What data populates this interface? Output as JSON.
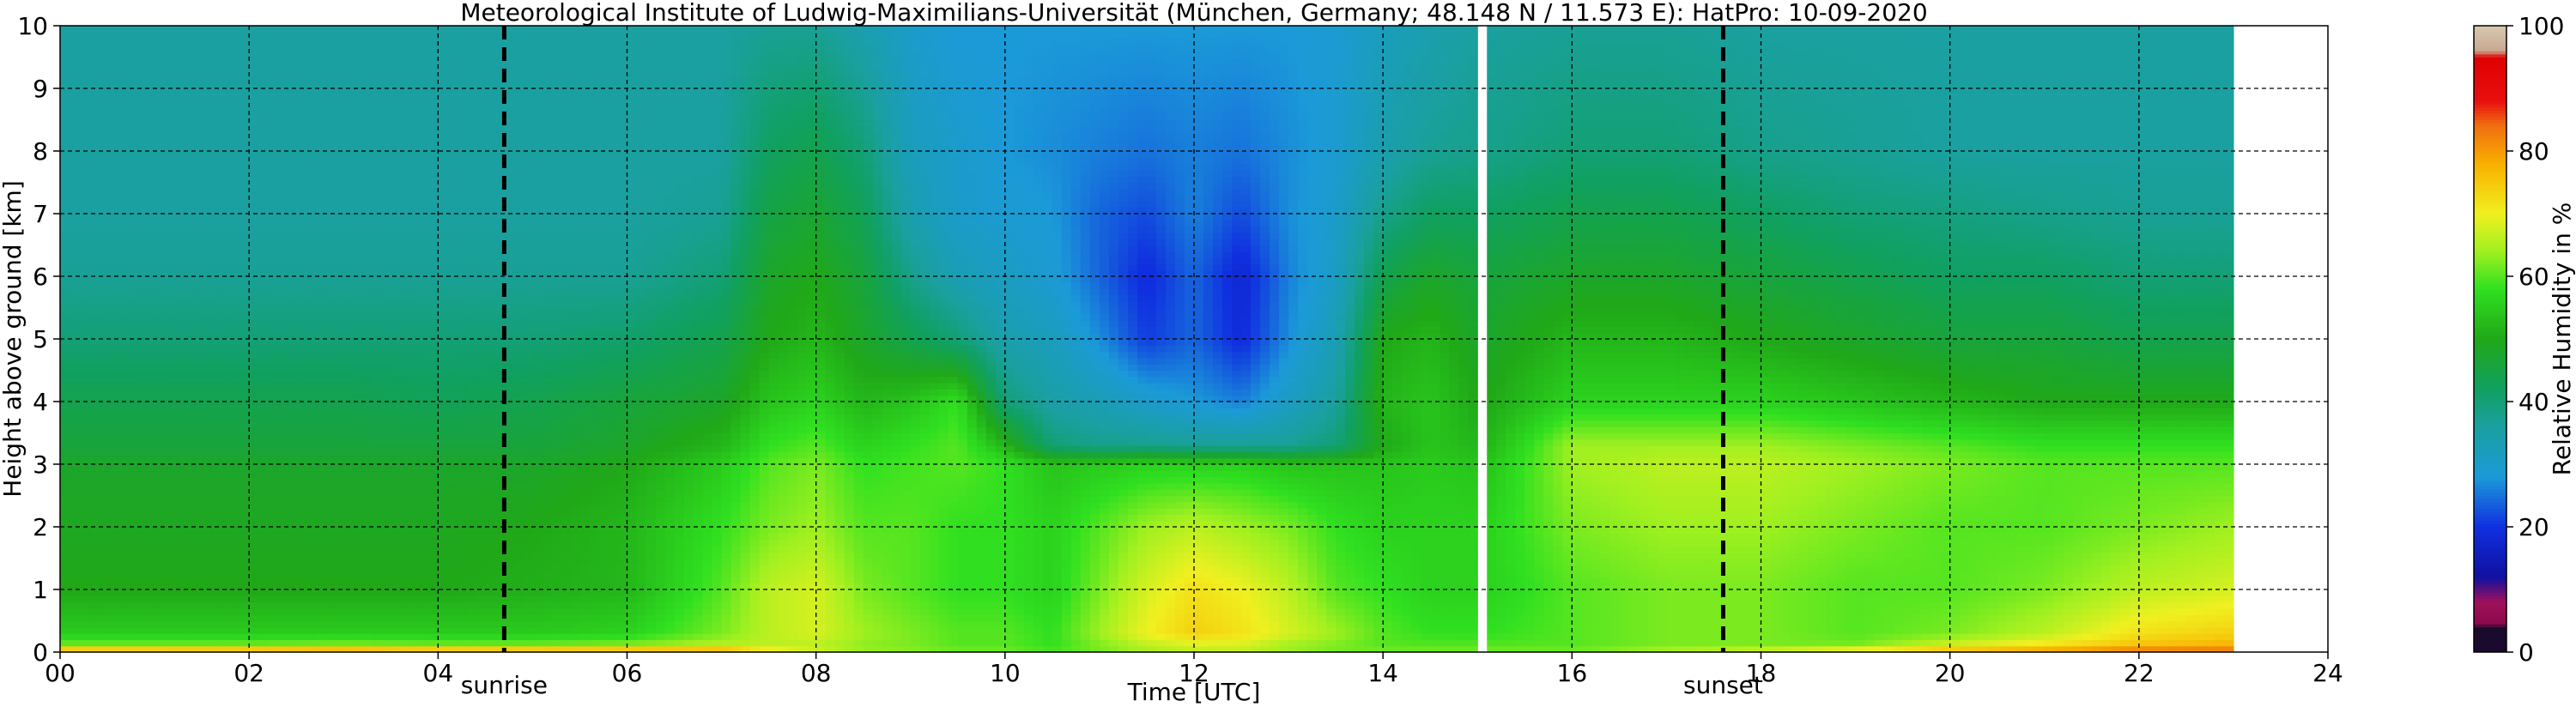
{
  "chart_data": {
    "type": "heatmap",
    "title": "Meteorological Institute of Ludwig-Maximilians-Universität (München, Germany; 48.148 N / 11.573 E):    HatPro: 10-09-2020",
    "xlabel": "Time [UTC]",
    "ylabel": "Height above ground [km]",
    "xlim": [
      0,
      24
    ],
    "ylim": [
      0,
      10
    ],
    "x_ticks": [
      "00",
      "02",
      "04",
      "06",
      "08",
      "10",
      "12",
      "14",
      "16",
      "18",
      "20",
      "22",
      "24"
    ],
    "y_ticks": [
      "0",
      "1",
      "2",
      "3",
      "4",
      "5",
      "6",
      "7",
      "8",
      "9",
      "10"
    ],
    "grid": true,
    "data_end_hour": 23.0,
    "data_gap_hours": [
      15.0,
      15.1
    ],
    "annotations": [
      {
        "label": "sunrise",
        "x": 4.7
      },
      {
        "label": "sunset",
        "x": 17.6
      }
    ],
    "colorbar": {
      "label": "Relative Humidity in %",
      "range": [
        0,
        100
      ],
      "ticks": [
        "0",
        "20",
        "40",
        "60",
        "80",
        "100"
      ],
      "stops": [
        {
          "value": 0,
          "color": "#1a0a2e"
        },
        {
          "value": 4,
          "color": "#1a0a2e"
        },
        {
          "value": 4.5,
          "color": "#8a0a4a"
        },
        {
          "value": 8,
          "color": "#a0105a"
        },
        {
          "value": 12,
          "color": "#1010a0"
        },
        {
          "value": 20,
          "color": "#1030e0"
        },
        {
          "value": 28,
          "color": "#1b9ad8"
        },
        {
          "value": 36,
          "color": "#1aa0a0"
        },
        {
          "value": 42,
          "color": "#10a060"
        },
        {
          "value": 50,
          "color": "#20a818"
        },
        {
          "value": 58,
          "color": "#30e020"
        },
        {
          "value": 64,
          "color": "#a0f020"
        },
        {
          "value": 70,
          "color": "#f0f020"
        },
        {
          "value": 78,
          "color": "#f8b000"
        },
        {
          "value": 84,
          "color": "#f07010"
        },
        {
          "value": 88,
          "color": "#e81010"
        },
        {
          "value": 95,
          "color": "#e00000"
        },
        {
          "value": 96,
          "color": "#c8a890"
        },
        {
          "value": 100,
          "color": "#d8c8b0"
        }
      ]
    },
    "field": {
      "time": [
        0,
        1,
        2,
        3,
        4,
        5,
        6,
        7,
        7.5,
        8,
        8.5,
        9,
        9.5,
        10,
        10.5,
        11,
        11.5,
        12,
        12.5,
        13,
        13.5,
        14,
        14.5,
        15,
        15.1,
        16,
        17,
        18,
        19,
        20,
        21,
        22,
        23
      ],
      "height_km": [
        0,
        0.1,
        0.3,
        1,
        2,
        3,
        3.3,
        4,
        5,
        6,
        7,
        8,
        10
      ],
      "rh": [
        [
          86,
          62,
          55,
          50,
          49,
          48,
          46,
          44,
          40,
          37,
          36,
          36,
          36
        ],
        [
          86,
          62,
          55,
          50,
          49,
          48,
          46,
          44,
          40,
          37,
          36,
          36,
          36
        ],
        [
          87,
          62,
          55,
          50,
          49,
          48,
          46,
          44,
          40,
          37,
          36,
          36,
          36
        ],
        [
          88,
          63,
          55,
          50,
          49,
          48,
          46,
          44,
          40,
          37,
          36,
          36,
          36
        ],
        [
          86,
          62,
          55,
          50,
          49,
          48,
          46,
          43,
          40,
          37,
          36,
          36,
          36
        ],
        [
          86,
          62,
          55,
          51,
          50,
          48,
          46,
          44,
          40,
          37,
          36,
          36,
          36
        ],
        [
          86,
          63,
          56,
          52,
          52,
          50,
          48,
          46,
          41,
          37,
          36,
          36,
          36
        ],
        [
          84,
          66,
          62,
          60,
          58,
          55,
          52,
          48,
          44,
          40,
          37,
          36,
          36
        ],
        [
          74,
          66,
          66,
          66,
          62,
          60,
          58,
          54,
          50,
          48,
          45,
          42,
          37
        ],
        [
          68,
          66,
          68,
          68,
          64,
          62,
          60,
          56,
          52,
          50,
          47,
          44,
          37
        ],
        [
          64,
          63,
          64,
          62,
          60,
          58,
          56,
          52,
          48,
          46,
          43,
          40,
          34
        ],
        [
          63,
          62,
          62,
          60,
          60,
          59,
          58,
          54,
          44,
          38,
          34,
          32,
          30
        ],
        [
          62,
          60,
          60,
          58,
          58,
          60,
          60,
          58,
          40,
          33,
          30,
          30,
          28
        ],
        [
          62,
          60,
          60,
          58,
          58,
          58,
          52,
          40,
          34,
          31,
          29,
          28,
          28
        ],
        [
          60,
          58,
          58,
          56,
          56,
          54,
          40,
          35,
          32,
          29,
          28,
          27,
          28
        ],
        [
          62,
          62,
          64,
          62,
          60,
          55,
          38,
          33,
          27,
          24,
          24,
          26,
          28
        ],
        [
          64,
          66,
          70,
          68,
          64,
          56,
          38,
          30,
          21,
          19,
          22,
          25,
          28
        ],
        [
          66,
          68,
          74,
          72,
          66,
          56,
          37,
          28,
          24,
          24,
          26,
          26,
          28
        ],
        [
          66,
          68,
          72,
          70,
          64,
          56,
          37,
          26,
          19,
          18,
          22,
          25,
          28
        ],
        [
          64,
          64,
          68,
          66,
          62,
          54,
          37,
          31,
          27,
          26,
          27,
          27,
          28
        ],
        [
          62,
          62,
          64,
          60,
          58,
          54,
          40,
          36,
          33,
          31,
          30,
          29,
          29
        ],
        [
          62,
          60,
          60,
          58,
          56,
          54,
          50,
          52,
          50,
          44,
          38,
          34,
          32
        ],
        [
          62,
          60,
          58,
          56,
          56,
          55,
          54,
          54,
          52,
          48,
          42,
          37,
          34
        ],
        [
          62,
          60,
          58,
          56,
          56,
          54,
          52,
          50,
          48,
          46,
          42,
          38,
          36
        ],
        [
          62,
          60,
          58,
          56,
          56,
          54,
          52,
          50,
          48,
          46,
          42,
          38,
          36
        ],
        [
          62,
          60,
          60,
          60,
          62,
          64,
          64,
          56,
          52,
          48,
          44,
          40,
          37
        ],
        [
          66,
          62,
          62,
          62,
          64,
          66,
          64,
          56,
          52,
          48,
          44,
          40,
          37
        ],
        [
          70,
          62,
          62,
          62,
          64,
          66,
          64,
          56,
          50,
          46,
          42,
          38,
          36
        ],
        [
          76,
          62,
          60,
          60,
          62,
          64,
          62,
          54,
          48,
          44,
          40,
          37,
          36
        ],
        [
          80,
          68,
          62,
          60,
          60,
          62,
          60,
          52,
          46,
          42,
          39,
          36,
          36
        ],
        [
          82,
          72,
          66,
          62,
          60,
          60,
          58,
          50,
          46,
          42,
          38,
          36,
          36
        ],
        [
          86,
          76,
          72,
          66,
          62,
          60,
          58,
          50,
          44,
          40,
          37,
          36,
          36
        ],
        [
          86,
          78,
          74,
          68,
          64,
          60,
          58,
          50,
          44,
          40,
          37,
          36,
          36
        ]
      ]
    }
  }
}
